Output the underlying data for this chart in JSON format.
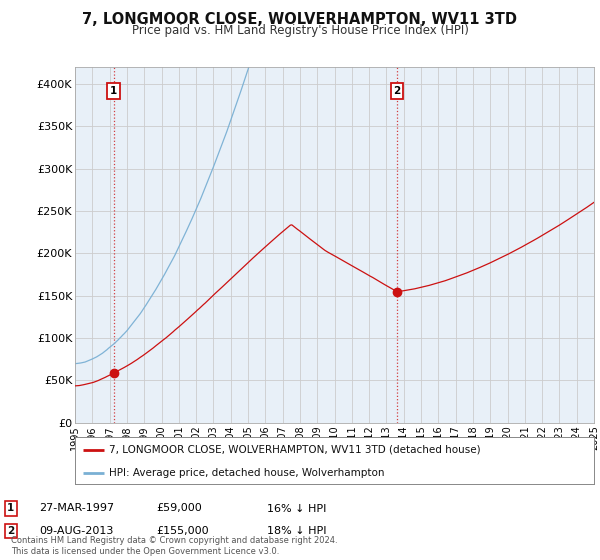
{
  "title": "7, LONGMOOR CLOSE, WOLVERHAMPTON, WV11 3TD",
  "subtitle": "Price paid vs. HM Land Registry's House Price Index (HPI)",
  "ylabel_ticks": [
    "£0",
    "£50K",
    "£100K",
    "£150K",
    "£200K",
    "£250K",
    "£300K",
    "£350K",
    "£400K"
  ],
  "ytick_values": [
    0,
    50000,
    100000,
    150000,
    200000,
    250000,
    300000,
    350000,
    400000
  ],
  "ylim": [
    0,
    420000
  ],
  "xlim_start": 1995.0,
  "xlim_end": 2025.0,
  "sale1_date": 1997.23,
  "sale1_price": 59000,
  "sale2_date": 2013.62,
  "sale2_price": 155000,
  "hpi_color": "#7ab0d4",
  "price_color": "#cc1111",
  "bg_chart": "#e8f0f8",
  "legend_line1": "7, LONGMOOR CLOSE, WOLVERHAMPTON, WV11 3TD (detached house)",
  "legend_line2": "HPI: Average price, detached house, Wolverhampton",
  "ann1_date": "27-MAR-1997",
  "ann1_price": "£59,000",
  "ann1_hpi": "16% ↓ HPI",
  "ann2_date": "09-AUG-2013",
  "ann2_price": "£155,000",
  "ann2_hpi": "18% ↓ HPI",
  "footer": "Contains HM Land Registry data © Crown copyright and database right 2024.\nThis data is licensed under the Open Government Licence v3.0.",
  "background_color": "#ffffff",
  "grid_color": "#cccccc"
}
